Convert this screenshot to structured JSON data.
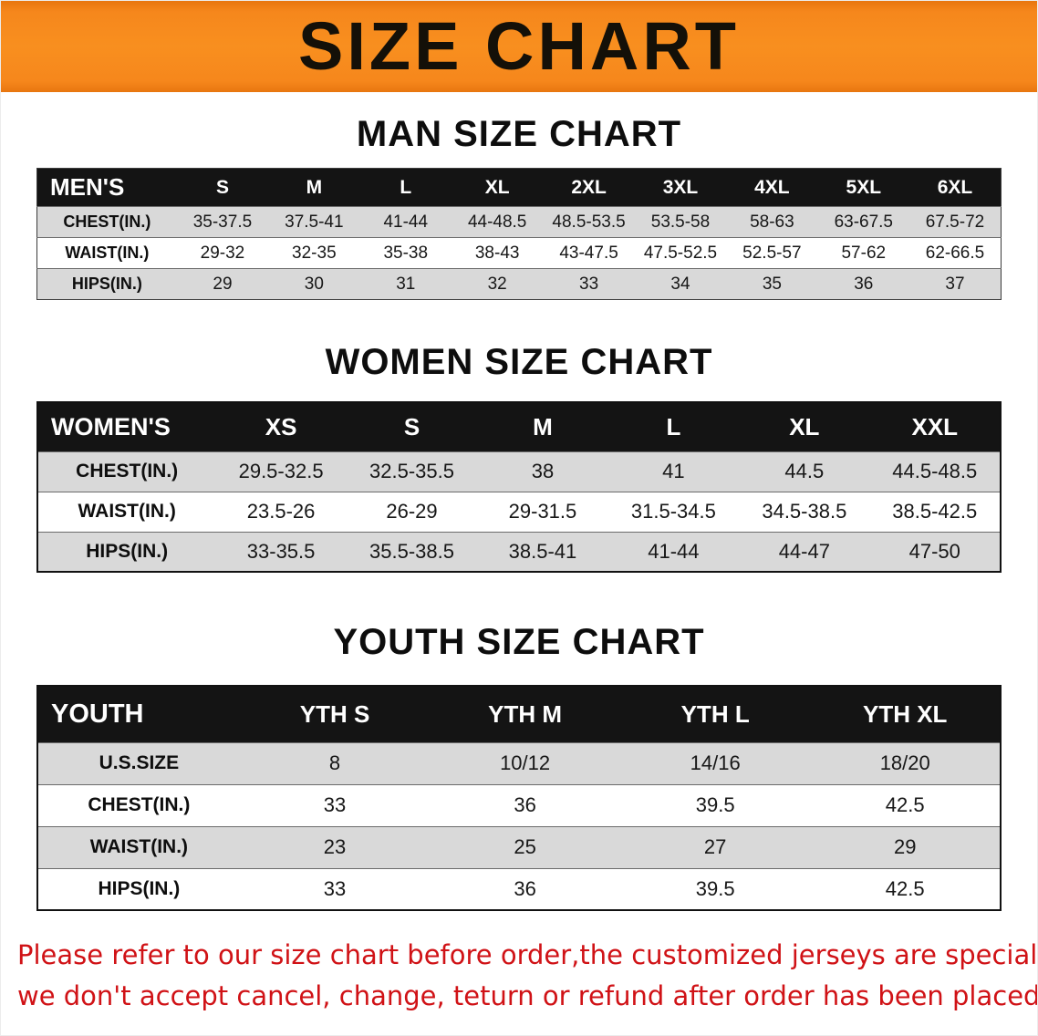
{
  "banner": {
    "title": "SIZE CHART"
  },
  "colors": {
    "banner_bg": "#f6871c",
    "table_header_bg": "#141414",
    "row_shade": "#d9d9d9",
    "disclaimer_text": "#d01216"
  },
  "tables": {
    "men": {
      "heading": "MAN SIZE CHART",
      "header": [
        "MEN'S",
        "S",
        "M",
        "L",
        "XL",
        "2XL",
        "3XL",
        "4XL",
        "5XL",
        "6XL"
      ],
      "rows": [
        {
          "label": "CHEST(IN.)",
          "values": [
            "35-37.5",
            "37.5-41",
            "41-44",
            "44-48.5",
            "48.5-53.5",
            "53.5-58",
            "58-63",
            "63-67.5",
            "67.5-72"
          ]
        },
        {
          "label": "WAIST(IN.)",
          "values": [
            "29-32",
            "32-35",
            "35-38",
            "38-43",
            "43-47.5",
            "47.5-52.5",
            "52.5-57",
            "57-62",
            "62-66.5"
          ]
        },
        {
          "label": "HIPS(IN.)",
          "values": [
            "29",
            "30",
            "31",
            "32",
            "33",
            "34",
            "35",
            "36",
            "37"
          ]
        }
      ]
    },
    "women": {
      "heading": "WOMEN SIZE CHART",
      "header": [
        "WOMEN'S",
        "XS",
        "S",
        "M",
        "L",
        "XL",
        "XXL"
      ],
      "rows": [
        {
          "label": "CHEST(IN.)",
          "values": [
            "29.5-32.5",
            "32.5-35.5",
            "38",
            "41",
            "44.5",
            "44.5-48.5"
          ]
        },
        {
          "label": "WAIST(IN.)",
          "values": [
            "23.5-26",
            "26-29",
            "29-31.5",
            "31.5-34.5",
            "34.5-38.5",
            "38.5-42.5"
          ]
        },
        {
          "label": "HIPS(IN.)",
          "values": [
            "33-35.5",
            "35.5-38.5",
            "38.5-41",
            "41-44",
            "44-47",
            "47-50"
          ]
        }
      ]
    },
    "youth": {
      "heading": "YOUTH SIZE CHART",
      "header": [
        "YOUTH",
        "YTH S",
        "YTH M",
        "YTH L",
        "YTH XL"
      ],
      "rows": [
        {
          "label": "U.S.SIZE",
          "values": [
            "8",
            "10/12",
            "14/16",
            "18/20"
          ]
        },
        {
          "label": "CHEST(IN.)",
          "values": [
            "33",
            "36",
            "39.5",
            "42.5"
          ]
        },
        {
          "label": "WAIST(IN.)",
          "values": [
            "23",
            "25",
            "27",
            "29"
          ]
        },
        {
          "label": "HIPS(IN.)",
          "values": [
            "33",
            "36",
            "39.5",
            "42.5"
          ]
        }
      ]
    }
  },
  "disclaimer": {
    "lines": [
      "Please refer to our size chart before order,the customized jerseys are special products,",
      "we don't accept cancel, change, teturn or refund after order has been placed!"
    ]
  }
}
